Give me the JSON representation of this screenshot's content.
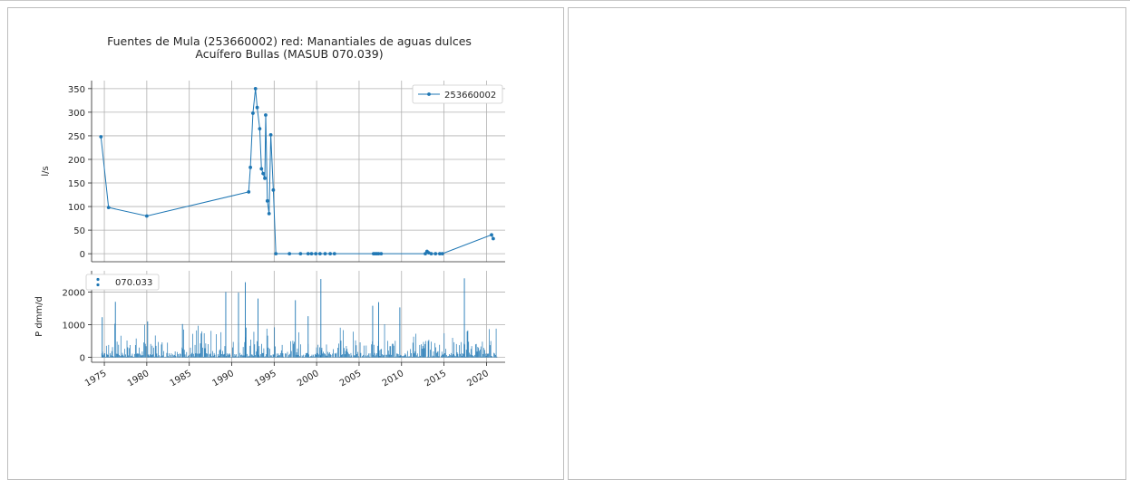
{
  "chart_data": [
    {
      "type": "line",
      "title": "Fuentes de Mula (253660002) red: Manantiales de aguas dulces",
      "subtitle": "Acuífero Bullas (MASUB 070.039)",
      "xlabel": "",
      "ylabel": "l/s",
      "xlim": [
        1973.5,
        2022.2
      ],
      "ylim": [
        -17,
        367
      ],
      "yticks": [
        0,
        50,
        100,
        150,
        200,
        250,
        300,
        350
      ],
      "grid": true,
      "legend": "top-right",
      "color": "#1f77b4",
      "series": [
        {
          "name": "253660002",
          "x": [
            1974.6,
            1975.5,
            1980.0,
            1992.0,
            1992.2,
            1992.5,
            1992.8,
            1993.0,
            1993.3,
            1993.5,
            1993.7,
            1993.9,
            1994.0,
            1994.2,
            1994.4,
            1994.6,
            1994.9,
            1995.2,
            1996.8,
            1998.1,
            1999.0,
            1999.4,
            1999.9,
            2000.4,
            2001.0,
            2001.6,
            2002.1,
            2006.7,
            2006.9,
            2007.1,
            2007.3,
            2007.6,
            2012.8,
            2013.0,
            2013.2,
            2013.5,
            2014.0,
            2014.5,
            2014.8,
            2020.6,
            2020.8
          ],
          "y": [
            248,
            98,
            80,
            131,
            183,
            298,
            350,
            310,
            265,
            180,
            170,
            160,
            294,
            112,
            85,
            252,
            135,
            0,
            0,
            0,
            0,
            0,
            0,
            0,
            0,
            0,
            0,
            0,
            0,
            0,
            0,
            0,
            0,
            5,
            2,
            0,
            0,
            0,
            0,
            40,
            32
          ]
        }
      ]
    },
    {
      "type": "bar",
      "title": "",
      "xlabel": "",
      "ylabel": "P dmm/d",
      "xlim": [
        1973.5,
        2022.2
      ],
      "ylim": [
        -150,
        2650
      ],
      "yticks": [
        0,
        1000,
        2000
      ],
      "xticks": [
        "1975",
        "1980",
        "1985",
        "1990",
        "1995",
        "2000",
        "2005",
        "2010",
        "2015",
        "2020"
      ],
      "grid": true,
      "legend": "top-left",
      "color": "#1f77b4",
      "series": [
        {
          "name": "070.033",
          "x": [
            1974.75,
            1976.3,
            1980.1,
            1984.2,
            1989.3,
            1990.8,
            1991.6,
            1993.1,
            1997.5,
            1999.0,
            2000.5,
            2006.6,
            2007.3,
            2009.8,
            2017.4
          ],
          "values": [
            1230,
            1700,
            1100,
            1020,
            2000,
            1980,
            2300,
            1800,
            1750,
            1260,
            2400,
            1580,
            1690,
            1530,
            2420
          ]
        }
      ]
    }
  ]
}
